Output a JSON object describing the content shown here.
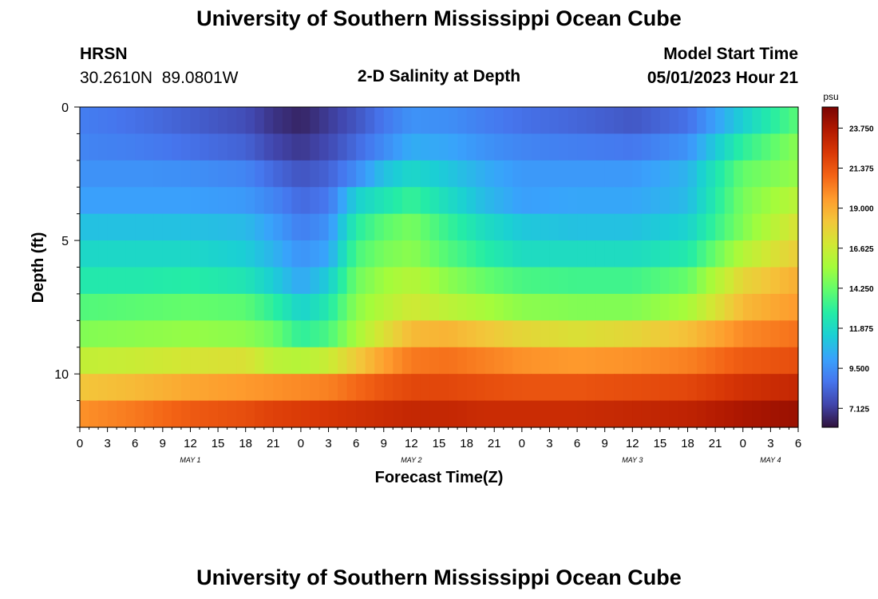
{
  "header": {
    "title_top": "University of Southern Mississippi Ocean Cube",
    "station": "HRSN",
    "coords": "30.2610N  89.0801W",
    "subtitle": "2-D Salinity at Depth",
    "model_start_label": "Model Start Time",
    "model_start_value": "05/01/2023 Hour 21",
    "title_bottom": "University of Southern Mississippi Ocean Cube"
  },
  "chart_data": {
    "type": "heatmap",
    "title": "2-D Salinity at Depth",
    "xlabel": "Forecast Time(Z)",
    "ylabel": "Depth (ft)",
    "x_tick_labels": [
      "0",
      "3",
      "6",
      "9",
      "12",
      "15",
      "18",
      "21",
      "0",
      "3",
      "6",
      "9",
      "12",
      "15",
      "18",
      "21",
      "0",
      "3",
      "6",
      "9",
      "12",
      "15",
      "18",
      "21",
      "0",
      "3",
      "6"
    ],
    "x_hours": [
      0,
      3,
      6,
      9,
      12,
      15,
      18,
      21,
      24,
      27,
      30,
      33,
      36,
      39,
      42,
      45,
      48,
      51,
      54,
      57,
      60,
      63,
      66,
      69,
      72,
      75,
      78
    ],
    "x_range_hours": [
      0,
      78
    ],
    "day_labels": [
      {
        "text": "MAY 1",
        "hour": 12
      },
      {
        "text": "MAY 2",
        "hour": 36
      },
      {
        "text": "MAY 3",
        "hour": 60
      },
      {
        "text": "MAY 4",
        "hour": 75
      }
    ],
    "y_ticks": [
      0,
      5,
      10
    ],
    "y_range_ft": [
      0,
      12
    ],
    "depths_ft": [
      0.5,
      1.5,
      2.5,
      3.5,
      4.5,
      5.5,
      6.5,
      7.5,
      8.5,
      9.5,
      10.5,
      11.5
    ],
    "time_hours": [
      0,
      6,
      12,
      18,
      21,
      24,
      27,
      30,
      33,
      36,
      40,
      44,
      48,
      54,
      60,
      66,
      72,
      78
    ],
    "salinity_psu": [
      [
        9.0,
        8.6,
        8.1,
        7.6,
        6.9,
        6.5,
        7.1,
        7.8,
        8.8,
        9.6,
        9.5,
        9.0,
        8.6,
        8.3,
        7.9,
        8.6,
        11.5,
        14.0
      ],
      [
        9.2,
        9.0,
        8.6,
        8.2,
        7.4,
        7.0,
        7.5,
        8.4,
        9.4,
        10.4,
        10.2,
        9.6,
        9.2,
        9.0,
        8.8,
        9.6,
        13.0,
        15.0
      ],
      [
        9.6,
        9.6,
        9.5,
        9.2,
        8.4,
        7.8,
        8.2,
        9.4,
        11.0,
        11.8,
        11.2,
        10.4,
        9.8,
        9.8,
        9.8,
        10.6,
        14.2,
        15.2
      ],
      [
        10.0,
        10.0,
        10.0,
        9.8,
        9.2,
        8.4,
        8.8,
        11.5,
        12.4,
        13.2,
        12.0,
        10.8,
        10.0,
        10.2,
        10.2,
        10.8,
        14.6,
        16.2
      ],
      [
        11.0,
        11.0,
        11.0,
        10.8,
        10.0,
        9.0,
        9.6,
        12.8,
        14.0,
        14.6,
        13.2,
        12.0,
        11.2,
        11.0,
        11.0,
        11.6,
        14.8,
        17.2
      ],
      [
        11.8,
        11.8,
        11.8,
        11.4,
        10.6,
        9.6,
        10.2,
        13.6,
        14.6,
        15.0,
        13.8,
        12.8,
        12.0,
        12.0,
        12.0,
        12.6,
        16.0,
        18.0
      ],
      [
        12.6,
        12.6,
        12.8,
        12.4,
        11.4,
        10.2,
        11.4,
        14.4,
        15.4,
        16.0,
        15.0,
        14.2,
        13.6,
        13.4,
        13.4,
        14.2,
        17.6,
        19.0
      ],
      [
        13.8,
        14.0,
        14.2,
        14.0,
        13.0,
        11.6,
        12.6,
        15.0,
        16.0,
        16.8,
        16.2,
        15.6,
        15.0,
        14.8,
        14.8,
        15.6,
        18.6,
        19.6
      ],
      [
        14.8,
        15.0,
        15.2,
        15.0,
        14.4,
        13.0,
        13.6,
        15.6,
        17.2,
        18.6,
        18.8,
        18.2,
        17.6,
        17.2,
        17.6,
        18.4,
        20.0,
        20.6
      ],
      [
        16.4,
        16.6,
        17.0,
        17.2,
        16.2,
        16.0,
        16.6,
        18.0,
        19.4,
        20.4,
        20.6,
        20.2,
        19.8,
        19.6,
        19.8,
        20.2,
        21.2,
        21.6
      ],
      [
        18.2,
        18.6,
        19.2,
        19.6,
        19.8,
        20.0,
        20.2,
        20.8,
        21.4,
        21.8,
        21.8,
        21.6,
        21.4,
        21.4,
        21.6,
        21.8,
        22.6,
        23.0
      ],
      [
        19.8,
        20.4,
        21.2,
        21.6,
        22.0,
        22.2,
        22.4,
        22.6,
        22.8,
        23.0,
        23.0,
        22.8,
        22.8,
        22.8,
        23.0,
        23.2,
        23.8,
        24.2
      ]
    ],
    "colorbar": {
      "unit": "psu",
      "ticks": [
        "7.125",
        "9.500",
        "11.875",
        "14.250",
        "16.625",
        "19.000",
        "21.375",
        "23.750"
      ],
      "range": [
        6.0,
        25.0
      ],
      "palette": [
        "#30123b",
        "#4145ab",
        "#4675ed",
        "#39a2fc",
        "#1bcfd4",
        "#24eca6",
        "#61fc6c",
        "#a4fc3b",
        "#d1e834",
        "#f3c63a",
        "#fe9b2d",
        "#f36315",
        "#d93806",
        "#b11901",
        "#7a0402"
      ]
    }
  }
}
